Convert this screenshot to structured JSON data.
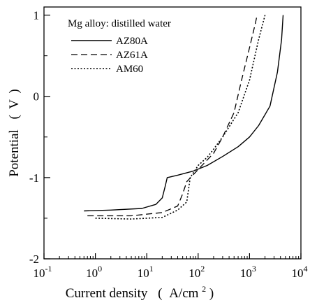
{
  "chart_data": {
    "type": "line",
    "title": "",
    "legend_title": "Mg alloy: distilled water",
    "legend_position": "top-left",
    "xlabel": "Current density",
    "xunit": "A/cm",
    "xunit_sup": "2",
    "ylabel": "Potential",
    "yunit": "V",
    "xscale": "log",
    "xlim": [
      0.1,
      10000
    ],
    "ylim": [
      -2,
      1.1
    ],
    "grid": false,
    "x_ticks": [
      0.1,
      1,
      10,
      100,
      1000,
      10000
    ],
    "x_tick_labels": [
      {
        "base": "10",
        "exp": "-1"
      },
      {
        "base": "10",
        "exp": "0"
      },
      {
        "base": "10",
        "exp": "1"
      },
      {
        "base": "10",
        "exp": "2"
      },
      {
        "base": "10",
        "exp": "3"
      },
      {
        "base": "10",
        "exp": "4"
      }
    ],
    "y_ticks": [
      -2,
      -1,
      0,
      1
    ],
    "y_tick_labels": [
      "-2",
      "-1",
      "0",
      "1"
    ],
    "series": [
      {
        "name": "AZ80A",
        "style": "solid",
        "points": [
          [
            0.6,
            -1.41
          ],
          [
            2,
            -1.4
          ],
          [
            8,
            -1.38
          ],
          [
            15,
            -1.33
          ],
          [
            20,
            -1.25
          ],
          [
            23,
            -1.1
          ],
          [
            25,
            -1.0
          ],
          [
            40,
            -0.97
          ],
          [
            80,
            -0.92
          ],
          [
            150,
            -0.85
          ],
          [
            300,
            -0.74
          ],
          [
            600,
            -0.62
          ],
          [
            1000,
            -0.5
          ],
          [
            1500,
            -0.36
          ],
          [
            2500,
            -0.12
          ],
          [
            3500,
            0.3
          ],
          [
            4200,
            0.7
          ],
          [
            4500,
            1.0
          ]
        ]
      },
      {
        "name": "AZ61A",
        "style": "dashed",
        "points": [
          [
            0.7,
            -1.47
          ],
          [
            5,
            -1.47
          ],
          [
            20,
            -1.43
          ],
          [
            40,
            -1.35
          ],
          [
            50,
            -1.2
          ],
          [
            60,
            -1.05
          ],
          [
            100,
            -0.9
          ],
          [
            200,
            -0.7
          ],
          [
            300,
            -0.5
          ],
          [
            500,
            -0.2
          ],
          [
            700,
            0.2
          ],
          [
            1000,
            0.6
          ],
          [
            1300,
            0.9
          ],
          [
            1400,
            1.0
          ]
        ]
      },
      {
        "name": "AM60",
        "style": "dotted",
        "points": [
          [
            1,
            -1.5
          ],
          [
            5,
            -1.51
          ],
          [
            20,
            -1.49
          ],
          [
            40,
            -1.4
          ],
          [
            60,
            -1.3
          ],
          [
            70,
            -1.0
          ],
          [
            100,
            -0.85
          ],
          [
            150,
            -0.75
          ],
          [
            200,
            -0.65
          ],
          [
            300,
            -0.5
          ],
          [
            600,
            -0.2
          ],
          [
            1000,
            0.2
          ],
          [
            1500,
            0.7
          ],
          [
            2000,
            1.0
          ]
        ]
      }
    ]
  }
}
